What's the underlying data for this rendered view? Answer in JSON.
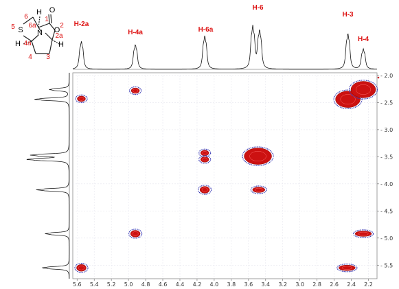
{
  "chart_data": {
    "type": "heatmap",
    "subtype": "2D NMR COSY",
    "title": "",
    "xlabel": "",
    "ylabel": "",
    "x_axis": {
      "range": [
        5.65,
        2.1
      ],
      "reversed": true,
      "ticks": [
        "5.6",
        "5.4",
        "5.2",
        "5.0",
        "4.8",
        "4.6",
        "4.4",
        "4.2",
        "4.0",
        "3.8",
        "3.6",
        "3.4",
        "3.2",
        "3.0",
        "2.8",
        "2.6",
        "2.4",
        "2.2"
      ]
    },
    "y_axis": {
      "range": [
        1.95,
        5.75
      ],
      "position": "right",
      "ticks": [
        "2.0",
        "2.5",
        "3.0",
        "3.5",
        "4.0",
        "4.5",
        "5.0",
        "5.5"
      ]
    },
    "grid": true,
    "peak_labels": [
      {
        "text": "H-2a",
        "ppm": 5.55
      },
      {
        "text": "H-4a",
        "ppm": 4.92
      },
      {
        "text": "H-6a",
        "ppm": 4.1
      },
      {
        "text": "H-6",
        "ppm": 3.49
      },
      {
        "text": "H-3",
        "ppm": 2.44
      },
      {
        "text": "H-4",
        "ppm": 2.26
      }
    ],
    "diagonal_peaks": [
      {
        "x": 5.55,
        "y": 5.55
      },
      {
        "x": 4.92,
        "y": 4.92
      },
      {
        "x": 4.11,
        "y": 4.11
      },
      {
        "x": 3.49,
        "y": 3.49
      },
      {
        "x": 2.44,
        "y": 2.44
      },
      {
        "x": 2.26,
        "y": 2.26
      }
    ],
    "cross_peaks": [
      {
        "x": 5.55,
        "y": 2.43
      },
      {
        "x": 4.92,
        "y": 2.28
      },
      {
        "x": 4.11,
        "y": 3.43
      },
      {
        "x": 4.11,
        "y": 3.55
      },
      {
        "x": 3.48,
        "y": 4.11
      },
      {
        "x": 2.26,
        "y": 4.92
      },
      {
        "x": 2.45,
        "y": 5.55
      }
    ],
    "spectrum_1d_peaks": [
      {
        "ppm": 5.55,
        "height": 0.62
      },
      {
        "ppm": 4.92,
        "height": 0.55
      },
      {
        "ppm": 4.11,
        "height": 0.75
      },
      {
        "ppm": 3.55,
        "height": 0.95
      },
      {
        "ppm": 3.47,
        "height": 0.85
      },
      {
        "ppm": 2.44,
        "height": 0.8
      },
      {
        "ppm": 2.26,
        "height": 0.45
      }
    ],
    "colors": {
      "positive": "#cc1111",
      "negative": "#3b3bb5",
      "label": "#dd1111"
    }
  },
  "structure": {
    "atoms": [
      "H",
      "O",
      "S",
      "N",
      "O",
      "H",
      "H"
    ],
    "numbers": [
      "6",
      "1",
      "5",
      "6a",
      "2",
      "4a",
      "2a",
      "4",
      "3"
    ]
  }
}
